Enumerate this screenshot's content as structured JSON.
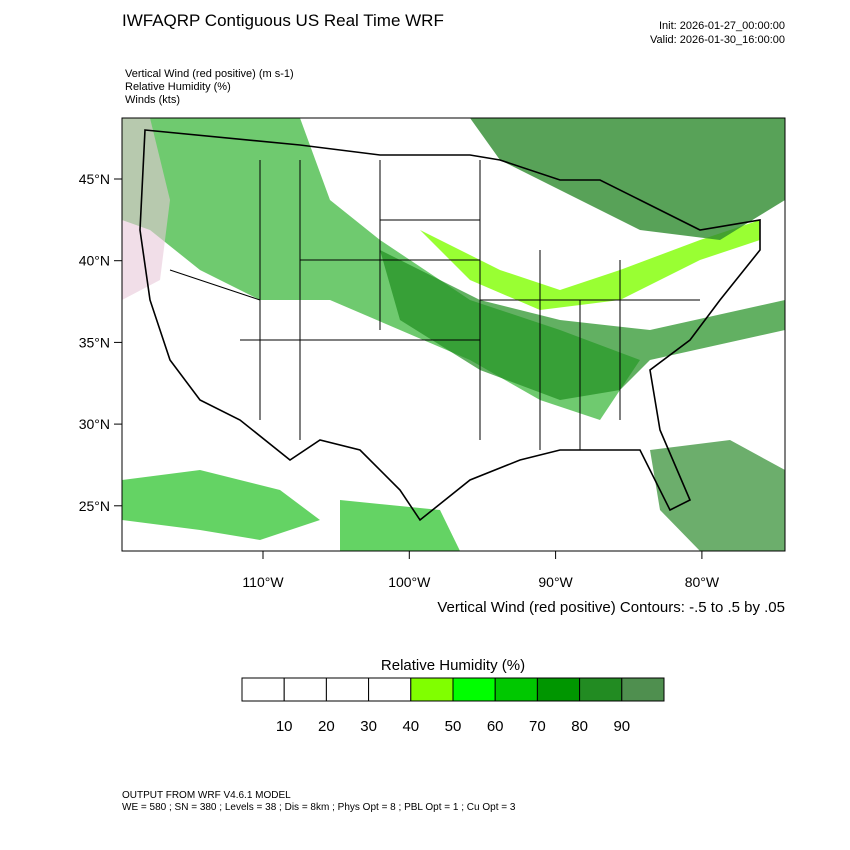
{
  "header": {
    "title": "IWFAQRP Contiguous US Real Time WRF",
    "init": "Init: 2026-01-27_00:00:00",
    "valid": "Valid: 2026-01-30_16:00:00"
  },
  "fields": [
    "Vertical Wind (red positive)   (m s-1)",
    "Relative Humidity   (%)",
    "Winds   (kts)"
  ],
  "map": {
    "lat_labels": [
      "45°N",
      "40°N",
      "35°N",
      "30°N",
      "25°N"
    ],
    "lon_labels": [
      "110°W",
      "100°W",
      "90°W",
      "80°W"
    ],
    "contour_caption": "Vertical Wind (red positive) Contours: -.5 to .5 by .05"
  },
  "colorbar": {
    "title": "Relative Humidity  (%)",
    "labels": [
      "10",
      "20",
      "30",
      "40",
      "50",
      "60",
      "70",
      "80",
      "90"
    ],
    "colors": [
      "#ffffff",
      "#ffffff",
      "#ffffff",
      "#ffffff",
      "#80ff00",
      "#00ff00",
      "#00c800",
      "#009600",
      "#228b22",
      "#4f8f4f"
    ]
  },
  "footer": {
    "line1": "OUTPUT FROM WRF V4.6.1 MODEL",
    "line2": "WE = 580 ; SN = 380 ; Levels = 38 ; Dis = 8km ; Phys Opt = 8 ; PBL Opt = 1 ; Cu Opt = 3"
  }
}
